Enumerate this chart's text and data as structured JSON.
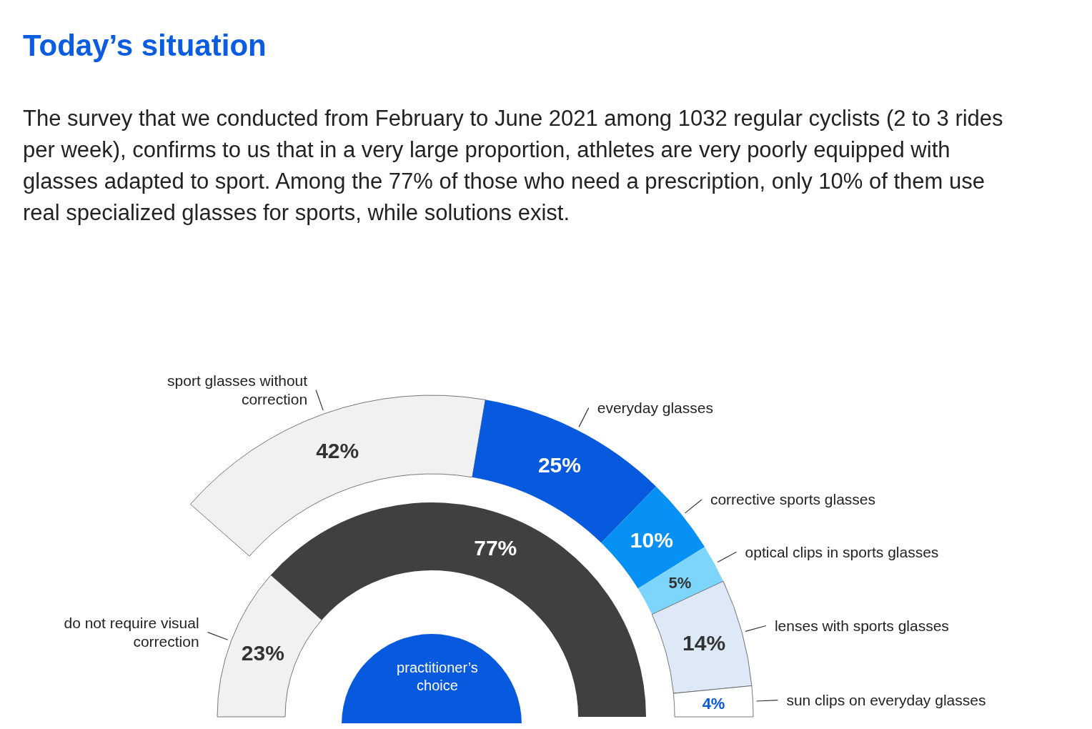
{
  "chart_data": [
    {
      "type": "donut",
      "title": "Today’s situation",
      "subtitle": "The survey that we conducted from February to June 2021 among 1032 regular cyclists (2 to 3 rides per week), confirms to us that in a very large proportion, athletes are very poorly equipped with glasses adapted to sport. Among the 77% of those who need a prescription, only 10% of them use real specialized glasses for sports, while solutions exist.",
      "categories": [
        "do not require visual correction",
        null
      ],
      "values": [
        23,
        77
      ],
      "value_labels": [
        "23%",
        "77%"
      ],
      "colors": [
        "#f1f1f1",
        "#404040"
      ],
      "annotations": [
        "practitioner’s choice"
      ]
    },
    {
      "type": "donut",
      "categories": [
        "sport glasses without correction",
        "everyday glasses",
        "corrective sports glasses",
        "optical clips in sports glasses",
        "lenses with sports glasses",
        "sun clips on everyday glasses"
      ],
      "values": [
        42,
        25,
        10,
        5,
        14,
        4
      ],
      "value_labels": [
        "42%",
        "25%",
        "10%",
        "5%",
        "14%",
        "4%"
      ],
      "colors": [
        "#f1f1f1",
        "#0759dd",
        "#0891f5",
        "#7dd5fb",
        "#dde9f7",
        "#ffffff"
      ]
    }
  ]
}
